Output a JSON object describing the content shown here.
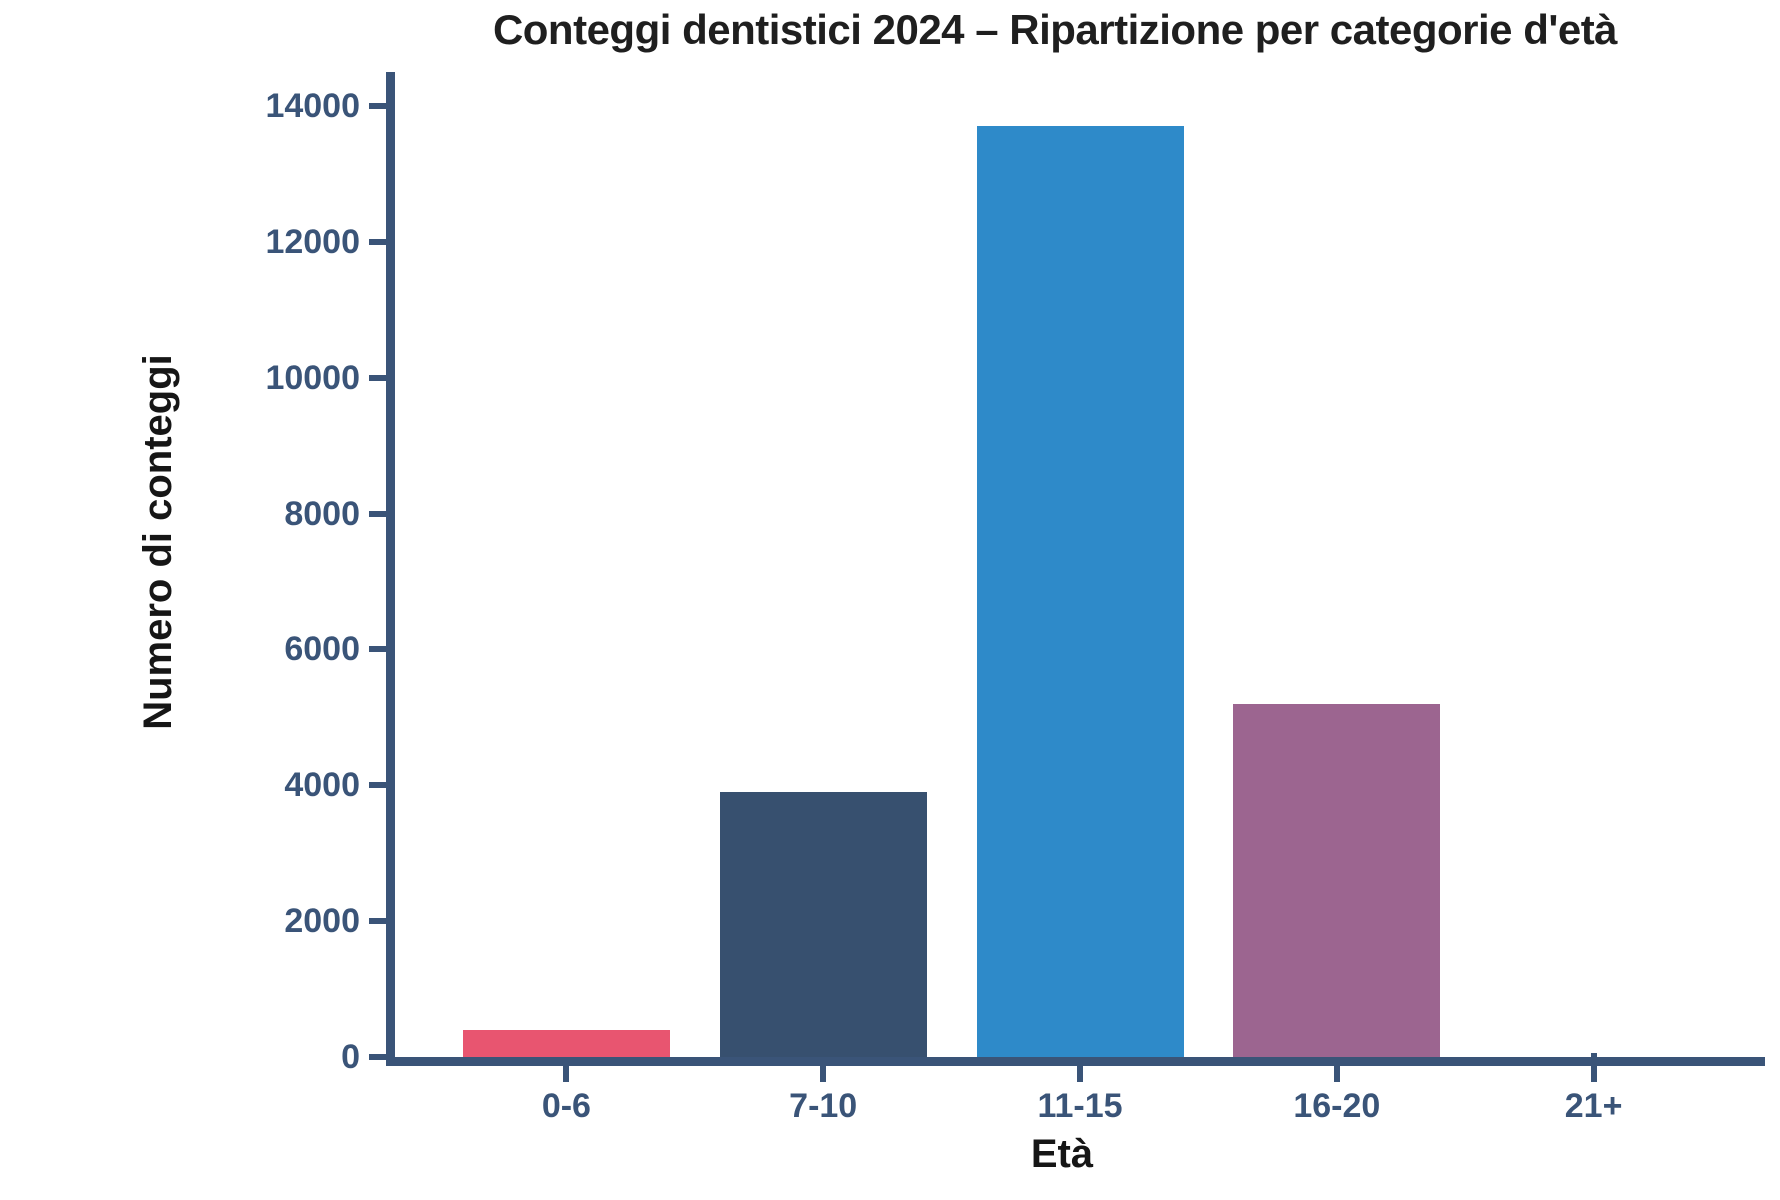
{
  "chart": {
    "title": "Conteggi dentistici 2024 – Ripartizione per categorie d'età",
    "xlabel": "Età",
    "ylabel": "Numero di conteggi"
  },
  "chart_data": {
    "type": "bar",
    "title": "Conteggi dentistici 2024 – Ripartizione per categorie d'età",
    "xlabel": "Età",
    "ylabel": "Numero di conteggi",
    "categories": [
      "0-6",
      "7-10",
      "11-15",
      "16-20",
      "21+"
    ],
    "values": [
      400,
      3900,
      13700,
      5200,
      0
    ],
    "bar_colors": [
      "#e85570",
      "#37506f",
      "#2e8ac9",
      "#9c6590",
      "#3a5478"
    ],
    "yticks": [
      0,
      2000,
      4000,
      6000,
      8000,
      10000,
      12000,
      14000
    ],
    "ylim": [
      0,
      14500
    ],
    "grid": false,
    "legend": null,
    "background": "#ffffff",
    "axis_color": "#3a5478",
    "tick_label_color": "#3a5478",
    "title_color": "#1f1f1f",
    "axis_title_color": "#161616"
  }
}
